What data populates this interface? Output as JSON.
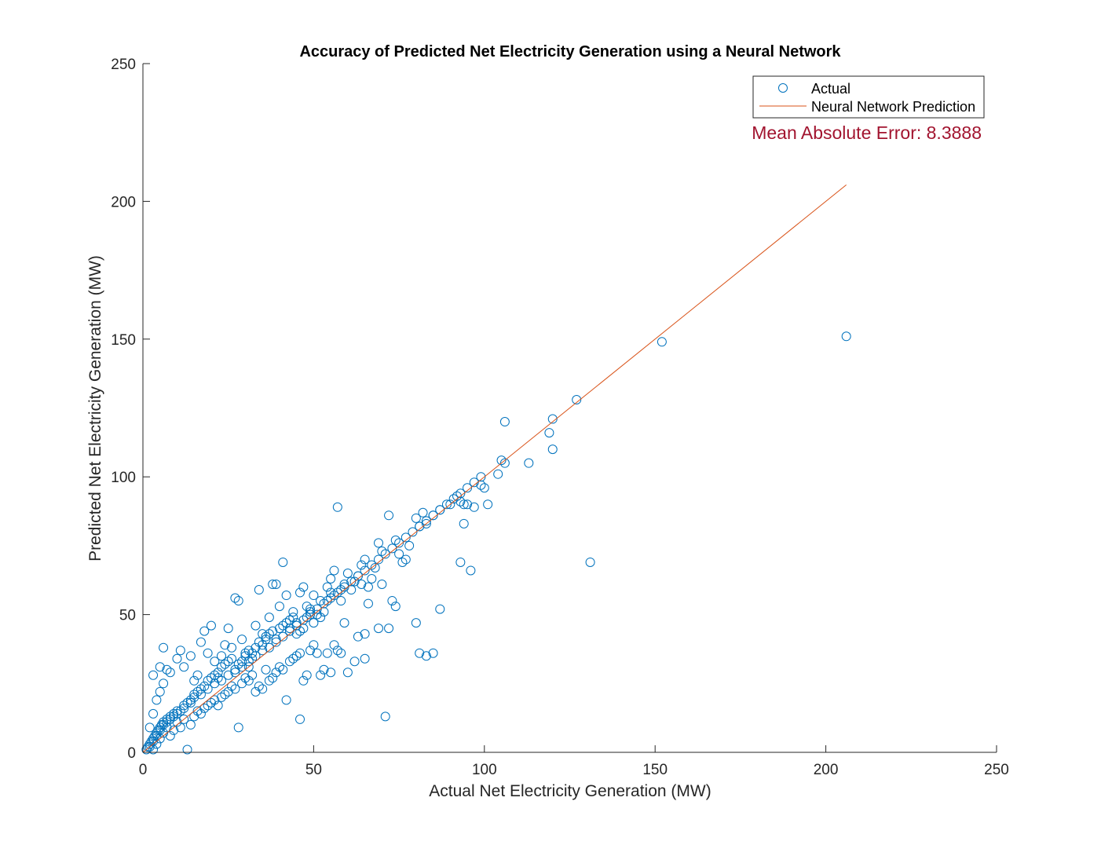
{
  "chart_data": {
    "type": "scatter",
    "title": "Accuracy of Predicted Net Electricity Generation using a Neural Network",
    "xlabel": "Actual Net Electricity Generation (MW)",
    "ylabel": "Predicted Net Electricity Generation (MW)",
    "xlim": [
      0,
      250
    ],
    "ylim": [
      0,
      250
    ],
    "xticks": [
      0,
      50,
      100,
      150,
      200,
      250
    ],
    "yticks": [
      0,
      50,
      100,
      150,
      200,
      250
    ],
    "grid": false,
    "legend": {
      "placement": "top-right",
      "entries": [
        "Actual",
        "Neural Network Prediction"
      ]
    },
    "annotation": "Mean Absolute Error: 8.3888",
    "colors": {
      "actual": "#0072BD",
      "prediction": "#D95319",
      "annotation": "#A2142F",
      "axis": "#262626"
    },
    "series": [
      {
        "name": "Actual",
        "marker": "circle",
        "points": [
          [
            1,
            1
          ],
          [
            1.5,
            2
          ],
          [
            2,
            3
          ],
          [
            2.5,
            4
          ],
          [
            3,
            5
          ],
          [
            3.5,
            6
          ],
          [
            4,
            7
          ],
          [
            4.5,
            8
          ],
          [
            5,
            9
          ],
          [
            5.5,
            10
          ],
          [
            6,
            11
          ],
          [
            7,
            12
          ],
          [
            8,
            13
          ],
          [
            9,
            14
          ],
          [
            10,
            15
          ],
          [
            12,
            16
          ],
          [
            14,
            18
          ],
          [
            15,
            20
          ],
          [
            17,
            21
          ],
          [
            19,
            23
          ],
          [
            21,
            25
          ],
          [
            23,
            26
          ],
          [
            25,
            28
          ],
          [
            27,
            30
          ],
          [
            29,
            31
          ],
          [
            31,
            33
          ],
          [
            33,
            35
          ],
          [
            35,
            37
          ],
          [
            37,
            38
          ],
          [
            39,
            40
          ],
          [
            41,
            42
          ],
          [
            43,
            44
          ],
          [
            45,
            46
          ],
          [
            47,
            48
          ],
          [
            49,
            50
          ],
          [
            51,
            52
          ],
          [
            53,
            54
          ],
          [
            55,
            56
          ],
          [
            57,
            58
          ],
          [
            59,
            60
          ],
          [
            61,
            62
          ],
          [
            63,
            64
          ],
          [
            65,
            66
          ],
          [
            67,
            68
          ],
          [
            69,
            70
          ],
          [
            71,
            72
          ],
          [
            73,
            74
          ],
          [
            75,
            76
          ],
          [
            77,
            78
          ],
          [
            79,
            80
          ],
          [
            81,
            82
          ],
          [
            83,
            84
          ],
          [
            85,
            86
          ],
          [
            87,
            88
          ],
          [
            89,
            90
          ],
          [
            91,
            92
          ],
          [
            93,
            94
          ],
          [
            95,
            96
          ],
          [
            97,
            98
          ],
          [
            99,
            100
          ],
          [
            2,
            9
          ],
          [
            3,
            14
          ],
          [
            4,
            19
          ],
          [
            5,
            22
          ],
          [
            6,
            25
          ],
          [
            3,
            28
          ],
          [
            5,
            31
          ],
          [
            7,
            30
          ],
          [
            6,
            38
          ],
          [
            8,
            29
          ],
          [
            10,
            34
          ],
          [
            11,
            37
          ],
          [
            12,
            31
          ],
          [
            14,
            35
          ],
          [
            15,
            26
          ],
          [
            16,
            28
          ],
          [
            17,
            40
          ],
          [
            18,
            44
          ],
          [
            19,
            36
          ],
          [
            20,
            46
          ],
          [
            21,
            33
          ],
          [
            22,
            27
          ],
          [
            23,
            35
          ],
          [
            24,
            39
          ],
          [
            25,
            45
          ],
          [
            26,
            38
          ],
          [
            27,
            56
          ],
          [
            28,
            55
          ],
          [
            29,
            41
          ],
          [
            30,
            36
          ],
          [
            31,
            31
          ],
          [
            32,
            34
          ],
          [
            33,
            46
          ],
          [
            34,
            59
          ],
          [
            35,
            43
          ],
          [
            36,
            41
          ],
          [
            37,
            49
          ],
          [
            38,
            61
          ],
          [
            39,
            61
          ],
          [
            40,
            53
          ],
          [
            41,
            69
          ],
          [
            42,
            57
          ],
          [
            43,
            45
          ],
          [
            44,
            51
          ],
          [
            45,
            47
          ],
          [
            46,
            58
          ],
          [
            47,
            60
          ],
          [
            48,
            53
          ],
          [
            49,
            52
          ],
          [
            50,
            57
          ],
          [
            52,
            55
          ],
          [
            54,
            60
          ],
          [
            55,
            63
          ],
          [
            56,
            66
          ],
          [
            57,
            89
          ],
          [
            58,
            59
          ],
          [
            60,
            65
          ],
          [
            62,
            62
          ],
          [
            64,
            68
          ],
          [
            65,
            70
          ],
          [
            66,
            60
          ],
          [
            68,
            67
          ],
          [
            69,
            76
          ],
          [
            70,
            73
          ],
          [
            72,
            86
          ],
          [
            74,
            77
          ],
          [
            75,
            72
          ],
          [
            76,
            69
          ],
          [
            77,
            70
          ],
          [
            78,
            75
          ],
          [
            80,
            85
          ],
          [
            81,
            82
          ],
          [
            82,
            87
          ],
          [
            83,
            83
          ],
          [
            85,
            86
          ],
          [
            87,
            88
          ],
          [
            90,
            90
          ],
          [
            92,
            93
          ],
          [
            93,
            91
          ],
          [
            94,
            90
          ],
          [
            95,
            90
          ],
          [
            97,
            89
          ],
          [
            99,
            97
          ],
          [
            100,
            96
          ],
          [
            101,
            90
          ],
          [
            104,
            101
          ],
          [
            105,
            106
          ],
          [
            106,
            105
          ],
          [
            106,
            120
          ],
          [
            113,
            105
          ],
          [
            120,
            121
          ],
          [
            119,
            116
          ],
          [
            120,
            110
          ],
          [
            127,
            128
          ],
          [
            152,
            149
          ],
          [
            206,
            151
          ],
          [
            2,
            2
          ],
          [
            3,
            1
          ],
          [
            4,
            3
          ],
          [
            5,
            5
          ],
          [
            6,
            7
          ],
          [
            7,
            9
          ],
          [
            8,
            6
          ],
          [
            9,
            8
          ],
          [
            10,
            11
          ],
          [
            11,
            9
          ],
          [
            12,
            12
          ],
          [
            13,
            1
          ],
          [
            14,
            10
          ],
          [
            15,
            13
          ],
          [
            16,
            15
          ],
          [
            17,
            14
          ],
          [
            18,
            16
          ],
          [
            19,
            17
          ],
          [
            20,
            18
          ],
          [
            21,
            19
          ],
          [
            22,
            17
          ],
          [
            23,
            20
          ],
          [
            24,
            21
          ],
          [
            25,
            22
          ],
          [
            26,
            24
          ],
          [
            27,
            23
          ],
          [
            28,
            9
          ],
          [
            29,
            25
          ],
          [
            30,
            27
          ],
          [
            31,
            26
          ],
          [
            32,
            28
          ],
          [
            33,
            22
          ],
          [
            34,
            24
          ],
          [
            35,
            23
          ],
          [
            36,
            30
          ],
          [
            37,
            26
          ],
          [
            38,
            27
          ],
          [
            39,
            29
          ],
          [
            40,
            31
          ],
          [
            41,
            30
          ],
          [
            42,
            19
          ],
          [
            43,
            33
          ],
          [
            44,
            34
          ],
          [
            45,
            35
          ],
          [
            46,
            36
          ],
          [
            47,
            26
          ],
          [
            48,
            28
          ],
          [
            49,
            37
          ],
          [
            50,
            39
          ],
          [
            51,
            36
          ],
          [
            52,
            28
          ],
          [
            53,
            30
          ],
          [
            54,
            36
          ],
          [
            55,
            29
          ],
          [
            56,
            39
          ],
          [
            57,
            37
          ],
          [
            58,
            36
          ],
          [
            59,
            47
          ],
          [
            60,
            29
          ],
          [
            62,
            33
          ],
          [
            63,
            42
          ],
          [
            65,
            43
          ],
          [
            65,
            34
          ],
          [
            66,
            54
          ],
          [
            69,
            45
          ],
          [
            70,
            61
          ],
          [
            71,
            13
          ],
          [
            72,
            45
          ],
          [
            73,
            55
          ],
          [
            74,
            53
          ],
          [
            80,
            47
          ],
          [
            81,
            36
          ],
          [
            83,
            35
          ],
          [
            85,
            36
          ],
          [
            87,
            52
          ],
          [
            93,
            69
          ],
          [
            94,
            83
          ],
          [
            96,
            66
          ],
          [
            131,
            69
          ],
          [
            46,
            12
          ],
          [
            3,
            4
          ],
          [
            4,
            6
          ],
          [
            5,
            8
          ],
          [
            6,
            10
          ],
          [
            7,
            11
          ],
          [
            8,
            12
          ],
          [
            9,
            13
          ],
          [
            10,
            14
          ],
          [
            11,
            15
          ],
          [
            12,
            17
          ],
          [
            13,
            18
          ],
          [
            14,
            19
          ],
          [
            15,
            21
          ],
          [
            16,
            22
          ],
          [
            17,
            23
          ],
          [
            18,
            24
          ],
          [
            19,
            26
          ],
          [
            20,
            27
          ],
          [
            21,
            28
          ],
          [
            22,
            29
          ],
          [
            23,
            31
          ],
          [
            24,
            32
          ],
          [
            25,
            33
          ],
          [
            26,
            34
          ],
          [
            27,
            29
          ],
          [
            28,
            32
          ],
          [
            29,
            33
          ],
          [
            30,
            35
          ],
          [
            31,
            37
          ],
          [
            32,
            36
          ],
          [
            33,
            38
          ],
          [
            34,
            40
          ],
          [
            35,
            39
          ],
          [
            36,
            42
          ],
          [
            37,
            43
          ],
          [
            38,
            44
          ],
          [
            39,
            41
          ],
          [
            40,
            45
          ],
          [
            41,
            46
          ],
          [
            42,
            47
          ],
          [
            43,
            48
          ],
          [
            44,
            49
          ],
          [
            45,
            43
          ],
          [
            46,
            44
          ],
          [
            47,
            45
          ],
          [
            48,
            49
          ],
          [
            49,
            51
          ],
          [
            50,
            47
          ],
          [
            51,
            50
          ],
          [
            52,
            49
          ],
          [
            53,
            51
          ],
          [
            54,
            55
          ],
          [
            55,
            58
          ],
          [
            56,
            57
          ],
          [
            58,
            55
          ],
          [
            59,
            61
          ],
          [
            61,
            59
          ],
          [
            63,
            64
          ],
          [
            64,
            61
          ],
          [
            67,
            63
          ]
        ]
      },
      {
        "name": "Neural Network Prediction",
        "type": "line",
        "points": [
          [
            0,
            0
          ],
          [
            206,
            206
          ]
        ]
      }
    ]
  }
}
